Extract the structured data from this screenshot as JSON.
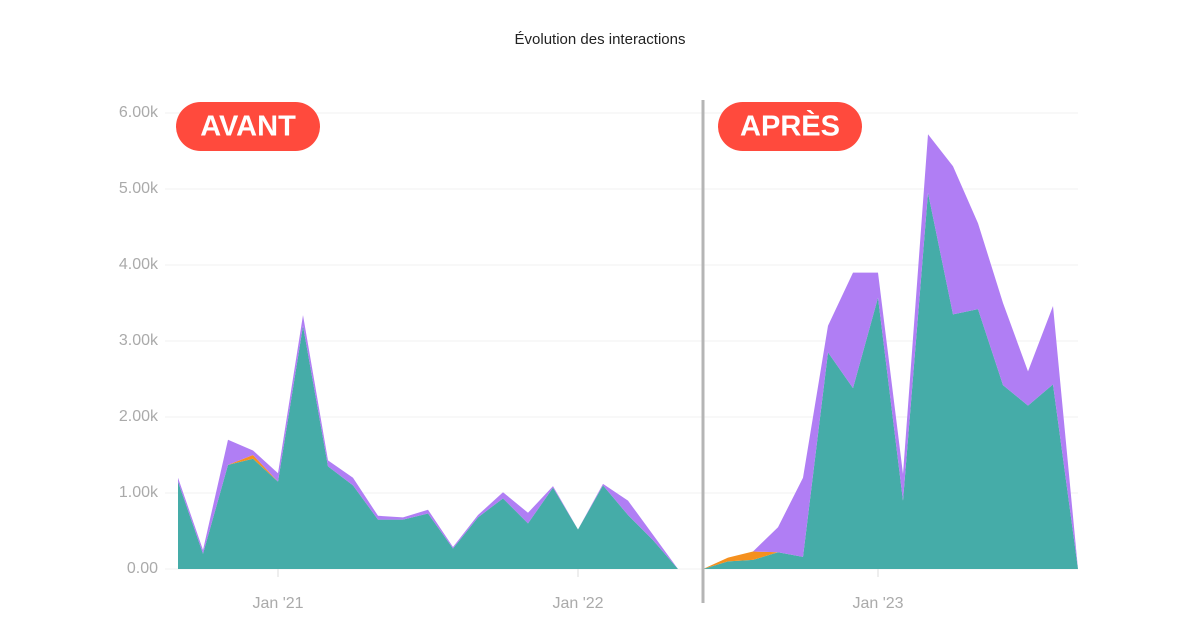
{
  "chart_data": {
    "type": "stacked_area",
    "title": "Évolution des interactions",
    "annotations": [
      "AVANT",
      "APRÈS"
    ],
    "categories": [
      null,
      null,
      null,
      null,
      "Jan '21",
      null,
      null,
      null,
      null,
      null,
      null,
      null,
      null,
      null,
      null,
      null,
      "Jan '22",
      null,
      null,
      null,
      null,
      null,
      null,
      null,
      null,
      null,
      null,
      null,
      "Jan '23",
      null,
      null,
      null,
      null,
      null,
      null,
      null,
      null
    ],
    "series": [
      {
        "color": "#45aca8",
        "values": [
          1150,
          200,
          1370,
          1450,
          1150,
          3200,
          1350,
          1100,
          650,
          650,
          730,
          270,
          680,
          930,
          600,
          1070,
          520,
          1100,
          710,
          380,
          0,
          0,
          100,
          120,
          220,
          160,
          2850,
          2380,
          3570,
          900,
          4950,
          3350,
          3420,
          2420,
          2150,
          2430,
          0
        ]
      },
      {
        "color": "#f5901e",
        "values": [
          0,
          0,
          0,
          50,
          0,
          0,
          0,
          0,
          0,
          0,
          0,
          0,
          0,
          0,
          0,
          0,
          0,
          0,
          0,
          0,
          0,
          0,
          50,
          110,
          0,
          0,
          0,
          0,
          0,
          0,
          0,
          0,
          0,
          0,
          0,
          0,
          0
        ]
      },
      {
        "color": "#b07ef4",
        "values": [
          50,
          50,
          330,
          60,
          110,
          140,
          80,
          100,
          50,
          30,
          50,
          20,
          30,
          80,
          140,
          20,
          0,
          20,
          190,
          70,
          0,
          0,
          0,
          0,
          330,
          1040,
          350,
          1520,
          330,
          350,
          770,
          1950,
          1130,
          1080,
          450,
          1030,
          0
        ]
      }
    ],
    "ylim": [
      0,
      6000
    ],
    "yticks": [
      {
        "value": 0,
        "label": "0.00"
      },
      {
        "value": 1000,
        "label": "1.00k"
      },
      {
        "value": 2000,
        "label": "2.00k"
      },
      {
        "value": 3000,
        "label": "3.00k"
      },
      {
        "value": 4000,
        "label": "4.00k"
      },
      {
        "value": 5000,
        "label": "5.00k"
      },
      {
        "value": 6000,
        "label": "6.00k"
      }
    ],
    "grid": true
  }
}
